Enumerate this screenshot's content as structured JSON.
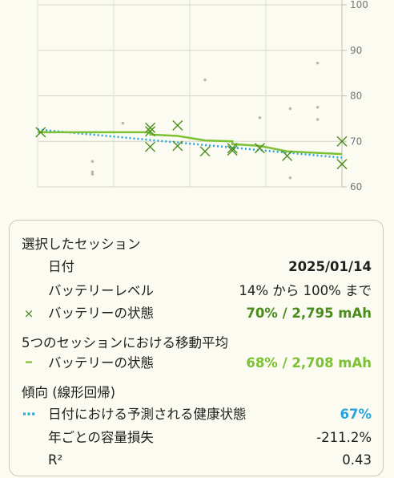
{
  "chart_data": {
    "type": "scatter",
    "y_axis": {
      "ticks": [
        60,
        70,
        80,
        90,
        100
      ],
      "ylim": [
        60,
        100
      ],
      "position": "right"
    },
    "grid": true,
    "colors": {
      "selected_marker": "#4a8c1c",
      "moving_average": "#7cc034",
      "trend": "#27a3de",
      "background_points": "#b9b9b0"
    },
    "background_points": [
      {
        "x": 0.18,
        "y": 65.6
      },
      {
        "x": 0.18,
        "y": 63.3
      },
      {
        "x": 0.18,
        "y": 62.8
      },
      {
        "x": 0.28,
        "y": 74.0
      },
      {
        "x": 0.55,
        "y": 83.5
      },
      {
        "x": 0.73,
        "y": 75.2
      },
      {
        "x": 0.83,
        "y": 77.2
      },
      {
        "x": 0.83,
        "y": 62.0
      },
      {
        "x": 0.92,
        "y": 87.2
      },
      {
        "x": 0.92,
        "y": 77.5
      },
      {
        "x": 0.92,
        "y": 74.8
      }
    ],
    "series": [
      {
        "name": "バッテリーの状態",
        "marker": "x",
        "points": [
          {
            "x": 0.01,
            "y": 72.0
          },
          {
            "x": 0.37,
            "y": 73.0
          },
          {
            "x": 0.37,
            "y": 72.2
          },
          {
            "x": 0.37,
            "y": 68.8
          },
          {
            "x": 0.46,
            "y": 73.5
          },
          {
            "x": 0.46,
            "y": 69.0
          },
          {
            "x": 0.55,
            "y": 67.8
          },
          {
            "x": 0.64,
            "y": 68.5
          },
          {
            "x": 0.64,
            "y": 68.0
          },
          {
            "x": 0.73,
            "y": 68.5
          },
          {
            "x": 0.82,
            "y": 66.8
          },
          {
            "x": 1.0,
            "y": 70.0
          },
          {
            "x": 1.0,
            "y": 65.0
          }
        ]
      },
      {
        "name": "移動平均",
        "line": [
          {
            "x": 0.0,
            "y": 72.0
          },
          {
            "x": 0.37,
            "y": 72.0
          },
          {
            "x": 0.37,
            "y": 71.5
          },
          {
            "x": 0.46,
            "y": 71.2
          },
          {
            "x": 0.55,
            "y": 70.2
          },
          {
            "x": 0.64,
            "y": 70.0
          },
          {
            "x": 0.64,
            "y": 69.4
          },
          {
            "x": 0.73,
            "y": 69.0
          },
          {
            "x": 0.82,
            "y": 67.8
          },
          {
            "x": 1.0,
            "y": 67.2
          }
        ]
      },
      {
        "name": "傾向",
        "line": [
          {
            "x": 0.0,
            "y": 72.6
          },
          {
            "x": 1.0,
            "y": 66.4
          }
        ]
      }
    ]
  },
  "selected_session": {
    "title": "選択したセッション",
    "date_label": "日付",
    "date_value": "2025/01/14",
    "battery_level_label": "バッテリーレベル",
    "battery_level_value": "14% から 100% まで",
    "battery_health_mark": "×",
    "battery_health_label": "バッテリーの状態",
    "battery_health_value": "70% / 2,795 mAh"
  },
  "moving_average": {
    "title": "5つのセッションにおける移動平均",
    "mark": "━",
    "label": "バッテリーの状態",
    "value": "68% / 2,708 mAh"
  },
  "trend": {
    "title": "傾向 (線形回帰)",
    "predicted_mark": "⋯",
    "predicted_label": "日付における予測される健康状態",
    "predicted_value": "67%",
    "capacity_loss_label": "年ごとの容量損失",
    "capacity_loss_value": "-211.2%",
    "r2_label": "R²",
    "r2_value": "0.43"
  }
}
